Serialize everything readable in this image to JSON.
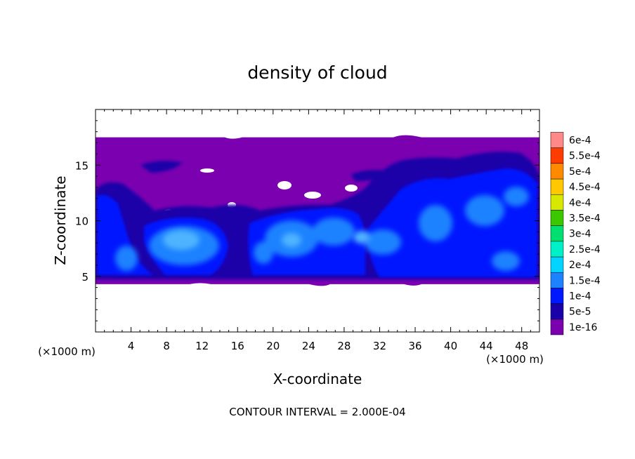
{
  "chart_data": {
    "type": "heatmap",
    "title": "density of cloud",
    "xlabel": "X-coordinate",
    "ylabel": "Z-coordinate",
    "x_unit_left": "(×1000 m)",
    "x_unit_right": "(×1000 m)",
    "xlim": [
      0,
      50
    ],
    "ylim": [
      0,
      20
    ],
    "x_ticks": [
      4,
      8,
      12,
      16,
      20,
      24,
      28,
      32,
      36,
      40,
      44,
      48
    ],
    "x_tick_labels": [
      "4",
      "8",
      "12",
      "16",
      "20",
      "24",
      "28",
      "32",
      "36",
      "40",
      "44",
      "48"
    ],
    "y_ticks": [
      5,
      10,
      15
    ],
    "y_tick_labels": [
      "5",
      "10",
      "15"
    ],
    "colorbar": {
      "labels": [
        "1e-16",
        "5e-5",
        "1e-4",
        "1.5e-4",
        "2e-4",
        "2.5e-4",
        "3e-4",
        "3.5e-4",
        "4e-4",
        "4.5e-4",
        "5e-4",
        "5.5e-4",
        "6e-4"
      ],
      "colors": [
        "#7a00b0",
        "#1a00a8",
        "#0018ff",
        "#1c82ff",
        "#00d4ff",
        "#00f0c8",
        "#00e070",
        "#3cc800",
        "#d8e800",
        "#ffc800",
        "#ff8a00",
        "#ff3c00",
        "#ff8888"
      ]
    },
    "cloud_layer": {
      "base_km": 4.3,
      "top_km": 17.5
    },
    "footer": "CONTOUR INTERVAL = 2.000E-04"
  }
}
